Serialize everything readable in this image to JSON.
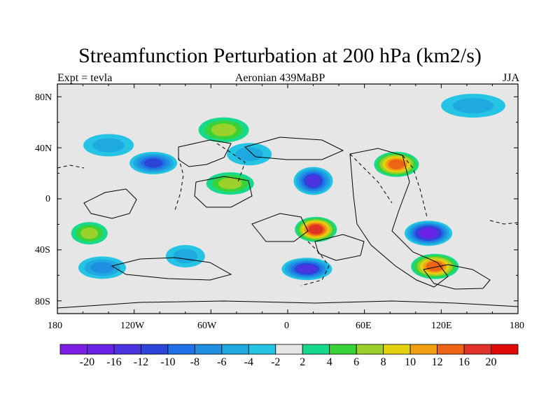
{
  "title": "Streamfunction Perturbation at 200 hPa (km2/s)",
  "subtitle_left": "Expt = tevla",
  "subtitle_center": "Aeronian 439MaBP",
  "subtitle_right": "JJA",
  "y_axis": {
    "labels": [
      "80N",
      "40N",
      "0",
      "40S",
      "80S"
    ]
  },
  "x_axis": {
    "labels": [
      "180",
      "120W",
      "60W",
      "0",
      "60E",
      "120E",
      "180"
    ]
  },
  "colorbar": {
    "labels": [
      "-20",
      "-16",
      "-12",
      "-10",
      "-8",
      "-6",
      "-4",
      "-2",
      "2",
      "4",
      "6",
      "8",
      "10",
      "12",
      "16",
      "20"
    ],
    "colors": [
      "#7d1ee6",
      "#6a22e8",
      "#4c35e0",
      "#2c44d8",
      "#2070e8",
      "#1f8fe2",
      "#1eaae0",
      "#25c4e4",
      "#e6e6e6",
      "#17d98c",
      "#38d23a",
      "#9cd02a",
      "#e4d20e",
      "#f0a010",
      "#ec6414",
      "#e03228",
      "#e00a0a"
    ]
  },
  "chart_data": {
    "type": "filled-contour-map",
    "variable": "Streamfunction Perturbation at 200 hPa",
    "units": "km2/s",
    "levels": [
      -20,
      -16,
      -12,
      -10,
      -8,
      -6,
      -4,
      -2,
      2,
      4,
      6,
      8,
      10,
      12,
      16,
      20
    ],
    "centers": [
      {
        "lon": 145,
        "lat": 73,
        "value": -5
      },
      {
        "lon": -50,
        "lat": 54,
        "value": 6
      },
      {
        "lon": -30,
        "lat": 35,
        "value": -4
      },
      {
        "lon": -140,
        "lat": 42,
        "value": -5
      },
      {
        "lon": -105,
        "lat": 28,
        "value": -11
      },
      {
        "lon": 20,
        "lat": 14,
        "value": -12
      },
      {
        "lon": 85,
        "lat": 27,
        "value": 14
      },
      {
        "lon": -45,
        "lat": 12,
        "value": 7
      },
      {
        "lon": -155,
        "lat": -27,
        "value": 7
      },
      {
        "lon": 22,
        "lat": -24,
        "value": 16
      },
      {
        "lon": 110,
        "lat": -27,
        "value": -19
      },
      {
        "lon": 15,
        "lat": -55,
        "value": -15
      },
      {
        "lon": 115,
        "lat": -53,
        "value": 14
      },
      {
        "lon": -145,
        "lat": -54,
        "value": -7
      },
      {
        "lon": -80,
        "lat": -45,
        "value": -4
      }
    ]
  }
}
